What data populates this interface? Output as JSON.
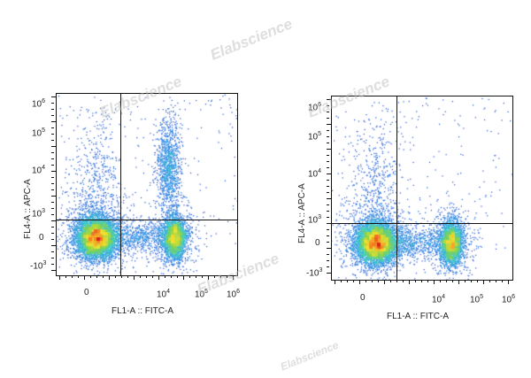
{
  "chart_data": [
    {
      "type": "scatter",
      "xlabel": "FL1-A :: FITC-A",
      "ylabel": "FL4-A :: APC-A",
      "x_ticks": [
        {
          "base": "0",
          "exp": ""
        },
        {
          "base": "10",
          "exp": "4"
        },
        {
          "base": "10",
          "exp": "5"
        },
        {
          "base": "10",
          "exp": "6"
        }
      ],
      "y_ticks": [
        {
          "base": "10",
          "exp": "6"
        },
        {
          "base": "10",
          "exp": "5"
        },
        {
          "base": "10",
          "exp": "4"
        },
        {
          "base": "10",
          "exp": "3"
        },
        {
          "base": "0",
          "exp": ""
        },
        {
          "base": "-10",
          "exp": "3"
        }
      ],
      "clusters": [
        {
          "name": "negative",
          "x": 0,
          "y": 0,
          "density": "high"
        },
        {
          "name": "FITC+",
          "x": 25000,
          "y": 0,
          "density": "medium"
        },
        {
          "name": "FITC+APC+",
          "x": 25000,
          "y": 15000,
          "density": "low"
        }
      ],
      "quadrant_gate": {
        "x": 2000,
        "y": 700
      }
    },
    {
      "type": "scatter",
      "xlabel": "FL1-A :: FITC-A",
      "ylabel": "FL4-A :: APC-A",
      "x_ticks": [
        {
          "base": "0",
          "exp": ""
        },
        {
          "base": "10",
          "exp": "4"
        },
        {
          "base": "10",
          "exp": "5"
        },
        {
          "base": "10",
          "exp": "6"
        }
      ],
      "y_ticks": [
        {
          "base": "10",
          "exp": "6"
        },
        {
          "base": "10",
          "exp": "5"
        },
        {
          "base": "10",
          "exp": "4"
        },
        {
          "base": "10",
          "exp": "3"
        },
        {
          "base": "0",
          "exp": ""
        },
        {
          "base": "-10",
          "exp": "3"
        }
      ],
      "clusters": [
        {
          "name": "negative",
          "x": 0,
          "y": 0,
          "density": "high"
        },
        {
          "name": "FITC+",
          "x": 25000,
          "y": 0,
          "density": "medium"
        }
      ],
      "quadrant_gate": {
        "x": 2000,
        "y": 700
      }
    }
  ],
  "watermark": "Elabscience",
  "colors": {
    "axis": "#111111",
    "low": "#1f3fbf",
    "mid": "#3cc0d8",
    "high": "#f2e13a",
    "peak": "#d7301f"
  }
}
